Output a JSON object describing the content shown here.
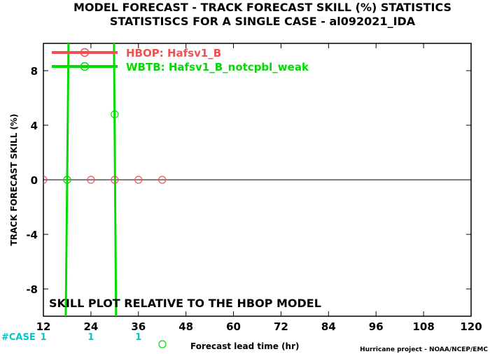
{
  "chart_data": {
    "type": "line",
    "title": "MODEL FORECAST - TRACK FORECAST SKILL (%) STATISTICS",
    "subtitle": "STATISTISCS FOR A SINGLE CASE - al092021_IDA",
    "xlabel": "Forecast lead time (hr)",
    "ylabel": "TRACK FORECAST SKILL (%)",
    "xlim": [
      12,
      120
    ],
    "ylim": [
      -10,
      10
    ],
    "xticks": [
      "12",
      "24",
      "36",
      "48",
      "60",
      "72",
      "84",
      "96",
      "108",
      "120"
    ],
    "yticks": [
      "-8",
      "-4",
      "0",
      "4",
      "8"
    ],
    "legend_position": "top-left",
    "annotation": "SKILL PLOT RELATIVE TO THE HBOP MODEL",
    "credit": "Hurricane project - NOAA/NCEP/EMC",
    "case_label": "#CASE",
    "case_counts": [
      {
        "x": 12,
        "n": "1"
      },
      {
        "x": 24,
        "n": "1"
      },
      {
        "x": 36,
        "n": "1"
      }
    ],
    "series": [
      {
        "name": "HBOP: Hafsv1_B",
        "color": "#f05050",
        "points": [
          [
            12,
            0
          ],
          [
            18,
            0
          ],
          [
            24,
            0
          ],
          [
            30,
            0
          ],
          [
            36,
            0
          ],
          [
            42,
            0
          ]
        ]
      },
      {
        "name": "WBTB: Hafsv1_B_notcpbl_weak",
        "color": "#00dc00",
        "points": [
          [
            18,
            0
          ],
          [
            30,
            4.8
          ]
        ],
        "vertical_lines": [
          18,
          30
        ]
      }
    ]
  }
}
